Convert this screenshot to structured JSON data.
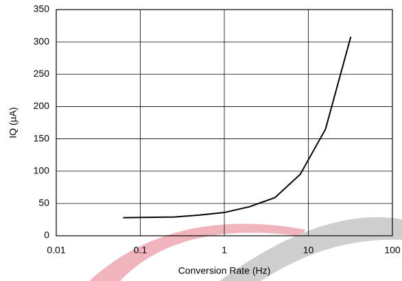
{
  "chart_data": {
    "type": "line",
    "x_label": "Conversion Rate (Hz)",
    "y_label": "IQ (µA)",
    "x": [
      0.0625,
      0.125,
      0.25,
      0.5,
      1,
      2,
      4,
      8,
      16,
      32
    ],
    "series": [
      {
        "color": "#000000",
        "values": [
          28,
          28.5,
          29,
          32,
          36,
          45,
          59,
          95,
          165,
          308
        ]
      }
    ],
    "xlim": [
      0.01,
      100
    ],
    "xticks": [
      0.01,
      0.1,
      1,
      10,
      100
    ],
    "xscale": "log",
    "ylim": [
      0,
      350
    ],
    "yticks": [
      0,
      50,
      100,
      150,
      200,
      250,
      300,
      350
    ],
    "grid": true
  }
}
